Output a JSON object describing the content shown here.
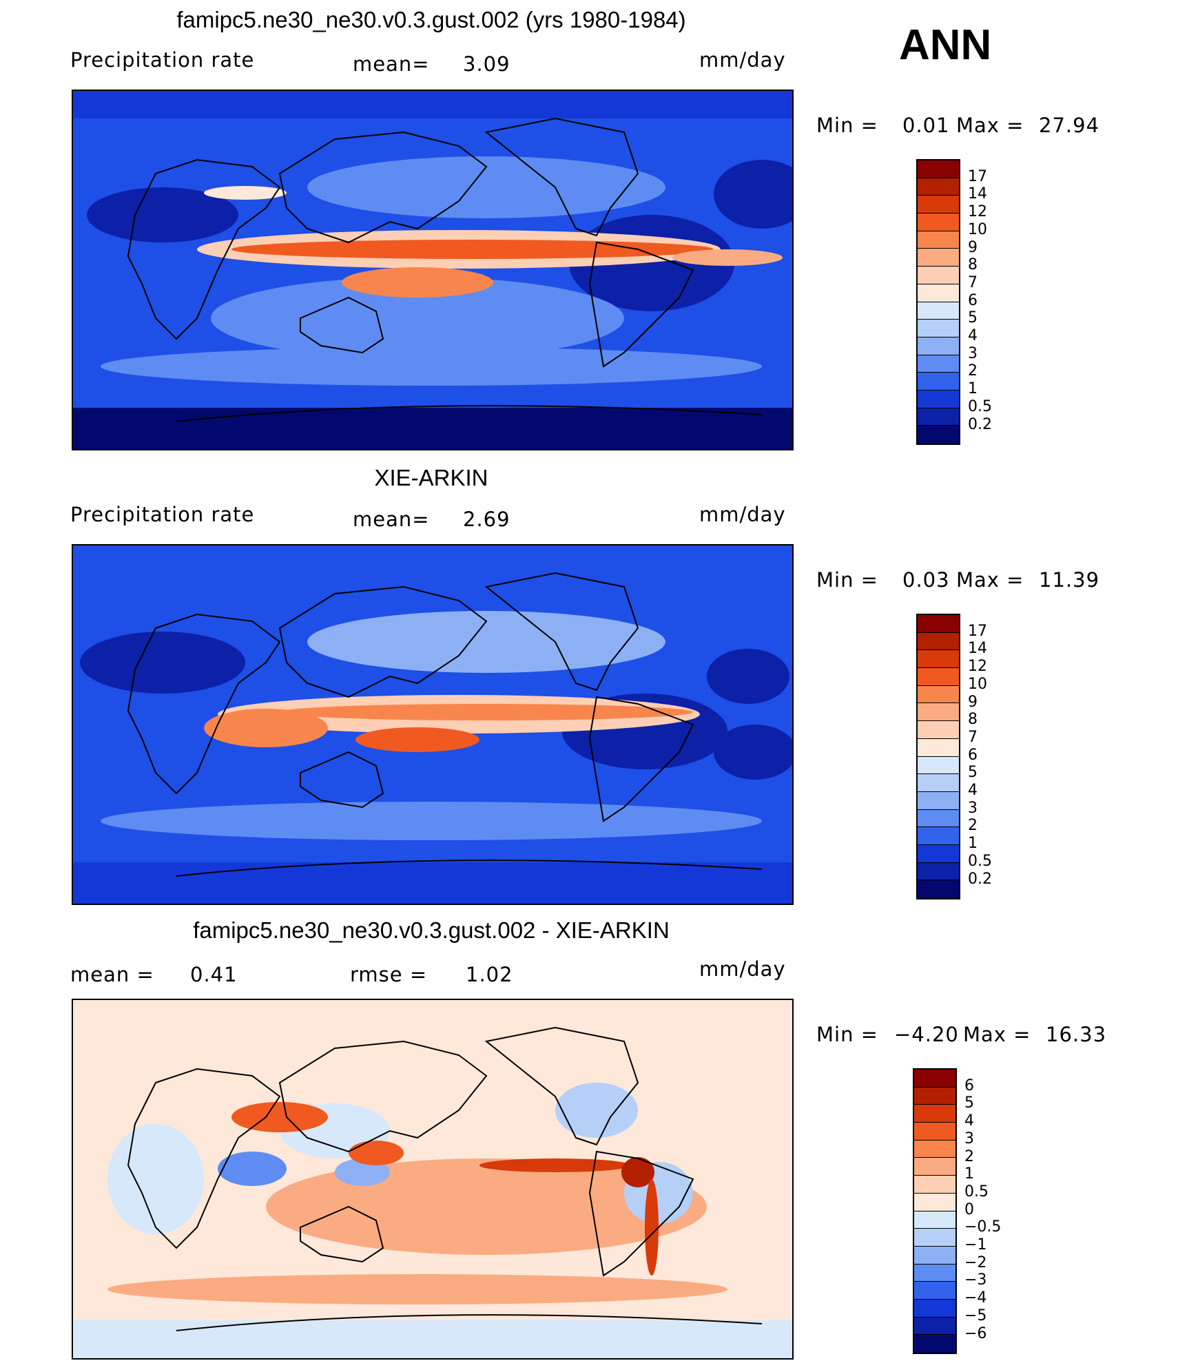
{
  "season": "ANN",
  "units": "mm/day",
  "panels": [
    {
      "title": "famipc5.ne30_ne30.v0.3.gust.002 (yrs 1980-1984)",
      "left_label": "Precipitation  rate",
      "mean_label": "mean=",
      "mean_value": "3.09",
      "min_label": "Min  =",
      "min_value": "0.01",
      "max_label": "Max  =",
      "max_value": "27.94",
      "colorbar_levels": [
        "17",
        "14",
        "12",
        "10",
        "9",
        "8",
        "7",
        "6",
        "5",
        "4",
        "3",
        "2",
        "1",
        "0.5",
        "0.2"
      ],
      "colorbar_colors": [
        "#8b0000",
        "#b22000",
        "#d83a0a",
        "#f05a20",
        "#f8864c",
        "#fbab82",
        "#fdcfb5",
        "#fde8da",
        "#d8e8fb",
        "#b5cff7",
        "#8db0f4",
        "#5e8cf2",
        "#3162ec",
        "#1438d8",
        "#0c20a8",
        "#02086e"
      ]
    },
    {
      "title": "XIE-ARKIN",
      "left_label": "Precipitation  rate",
      "mean_label": "mean=",
      "mean_value": "2.69",
      "min_label": "Min  =",
      "min_value": "0.03",
      "max_label": "Max  =",
      "max_value": "11.39",
      "colorbar_levels": [
        "17",
        "14",
        "12",
        "10",
        "9",
        "8",
        "7",
        "6",
        "5",
        "4",
        "3",
        "2",
        "1",
        "0.5",
        "0.2"
      ],
      "colorbar_colors": [
        "#8b0000",
        "#b22000",
        "#d83a0a",
        "#f05a20",
        "#f8864c",
        "#fbab82",
        "#fdcfb5",
        "#fde8da",
        "#d8e8fb",
        "#b5cff7",
        "#8db0f4",
        "#5e8cf2",
        "#3162ec",
        "#1438d8",
        "#0c20a8",
        "#02086e"
      ]
    },
    {
      "title": "famipc5.ne30_ne30.v0.3.gust.002 - XIE-ARKIN",
      "left_label": "mean  =",
      "left_value": "0.41",
      "mean_label": "rmse  =",
      "mean_value": "1.02",
      "min_label": "Min  =",
      "min_value": "−4.20",
      "max_label": "Max  =",
      "max_value": "16.33",
      "colorbar_levels": [
        "6",
        "5",
        "4",
        "3",
        "2",
        "1",
        "0.5",
        "0",
        "−0.5",
        "−1",
        "−2",
        "−3",
        "−4",
        "−5",
        "−6"
      ],
      "colorbar_colors": [
        "#8b0000",
        "#b22000",
        "#d83a0a",
        "#f05a20",
        "#f8864c",
        "#fbab82",
        "#fdcfb5",
        "#fde8da",
        "#d8e8fb",
        "#b5cff7",
        "#8db0f4",
        "#5e8cf2",
        "#3162ec",
        "#1438d8",
        "#0c20a8",
        "#02086e"
      ]
    }
  ]
}
